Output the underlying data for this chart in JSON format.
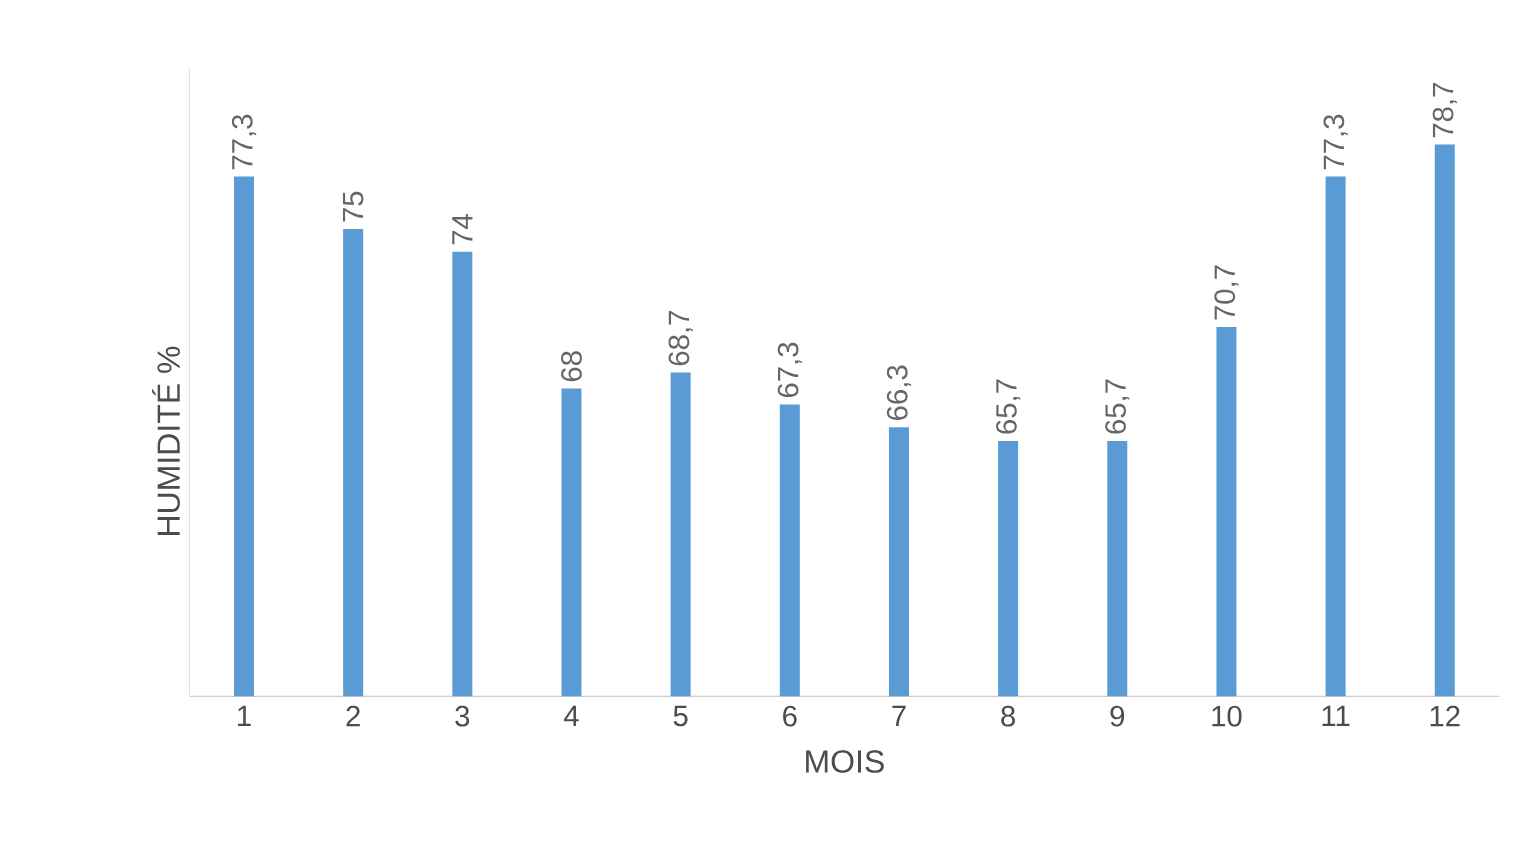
{
  "chart_data": {
    "type": "bar",
    "xlabel": "MOIS",
    "ylabel": "HUMIDITÉ %",
    "categories": [
      "1",
      "2",
      "3",
      "4",
      "5",
      "6",
      "7",
      "8",
      "9",
      "10",
      "11",
      "12"
    ],
    "values": [
      77.3,
      75,
      74,
      68,
      68.7,
      67.3,
      66.3,
      65.7,
      65.7,
      70.7,
      77.3,
      78.7
    ],
    "value_labels": [
      "77,3",
      "75",
      "74",
      "68",
      "68,7",
      "67,3",
      "66,3",
      "65,7",
      "65,7",
      "70,7",
      "77,3",
      "78,7"
    ],
    "color": "#5b9bd5",
    "ylim": [
      54.5,
      82
    ],
    "tick_labels": "x"
  }
}
